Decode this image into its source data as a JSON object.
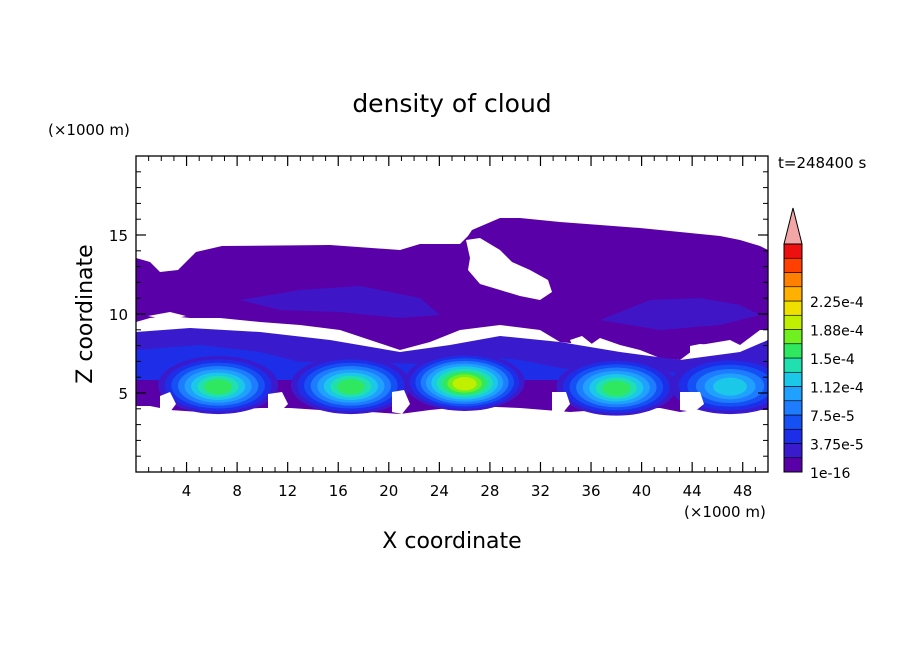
{
  "chart_data": {
    "type": "heatmap",
    "title": "density of cloud",
    "xlabel": "X coordinate",
    "ylabel": "Z coordinate",
    "x_unit": "(×1000 m)",
    "y_unit": "(×1000 m)",
    "time_label": "t=248400 s",
    "xlim": [
      0,
      50
    ],
    "ylim": [
      0,
      20
    ],
    "x_ticks": [
      4,
      8,
      12,
      16,
      20,
      24,
      28,
      32,
      36,
      40,
      44,
      48
    ],
    "y_ticks": [
      5,
      10,
      15
    ],
    "colorbar": {
      "levels": [
        "1e-16",
        "3.75e-5",
        "7.5e-5",
        "1.12e-4",
        "1.5e-4",
        "1.88e-4",
        "2.25e-4"
      ],
      "colors": [
        "#5a00a8",
        "#3a1acd",
        "#1e2ee8",
        "#1550f5",
        "#1d7cff",
        "#20a0ff",
        "#1cc8e8",
        "#20e0b0",
        "#30e860",
        "#70f020",
        "#c0f000",
        "#f0e000",
        "#ffb000",
        "#ff8000",
        "#ff4000",
        "#ee1010",
        "#f2a6a6"
      ],
      "extend": "max"
    },
    "features": [
      {
        "name": "upper-cloud-layer",
        "x": [
          0,
          49.5
        ],
        "z": [
          9.5,
          16
        ]
      },
      {
        "name": "cloud-cell-1",
        "x_center": 6.5,
        "z_center": 5.5,
        "level": "1.12e-4"
      },
      {
        "name": "cloud-cell-2",
        "x_center": 17,
        "z_center": 5.5,
        "level": "1.12e-4"
      },
      {
        "name": "cloud-cell-3",
        "x_center": 26,
        "z_center": 5.7,
        "level": "1.5e-4"
      },
      {
        "name": "cloud-cell-4",
        "x_center": 38,
        "z_center": 5.4,
        "level": "1.12e-4"
      },
      {
        "name": "cloud-cell-5",
        "x_center": 47,
        "z_center": 5.5,
        "level": "7.5e-5"
      }
    ]
  }
}
